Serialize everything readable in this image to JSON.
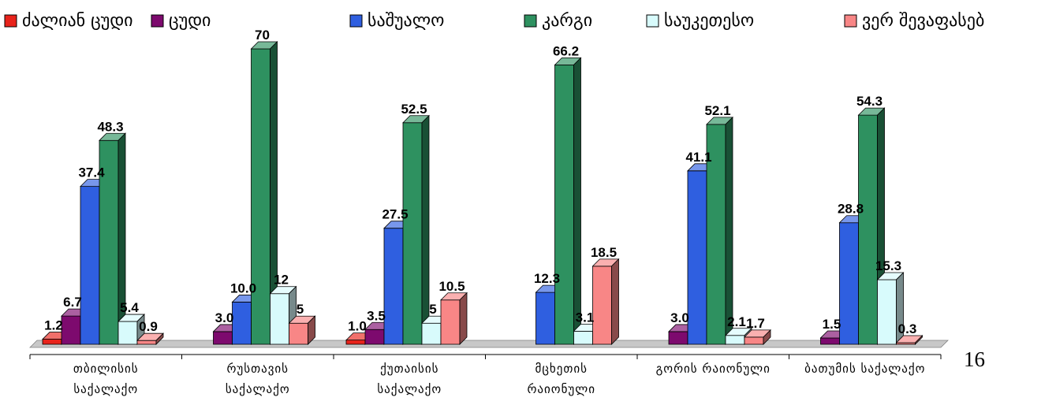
{
  "page_number": "16",
  "chart_data": {
    "type": "bar",
    "categories": [
      [
        "თბილისის",
        "საქალაქო"
      ],
      [
        "რუსთავის",
        "საქალაქო"
      ],
      [
        "ქუთაისის",
        "საქალაქო"
      ],
      [
        "მცხეთის",
        "რაიონული"
      ],
      [
        "გორის რაიონული"
      ],
      [
        "ბათუმის საქალაქო"
      ]
    ],
    "series": [
      {
        "name": "ძალიან ცუდი",
        "color": "#e8231b",
        "values": [
          1.2,
          null,
          1.0,
          null,
          null,
          null
        ],
        "labels": [
          "1.2",
          "",
          "1.0",
          "",
          "",
          ""
        ]
      },
      {
        "name": "ცუდი",
        "color": "#7d0a6e",
        "values": [
          6.7,
          3.0,
          3.5,
          null,
          3.0,
          1.5
        ],
        "labels": [
          "6.7",
          "3.0",
          "3.5",
          "",
          "3.0",
          "1.5"
        ]
      },
      {
        "name": "საშუალო",
        "color": "#2f5fe0",
        "values": [
          37.4,
          10.0,
          27.5,
          12.3,
          41.1,
          28.8
        ],
        "labels": [
          "37.4",
          "10.0",
          "27.5",
          "12.3",
          "41.1",
          "28.8"
        ]
      },
      {
        "name": "კარგი",
        "color": "#2e9160",
        "values": [
          48.3,
          70,
          52.5,
          66.2,
          52.1,
          54.3
        ],
        "labels": [
          "48.3",
          "70",
          "52.5",
          "66.2",
          "52.1",
          "54.3"
        ]
      },
      {
        "name": "საუკეთესო",
        "color": "#d8fbfc",
        "values": [
          5.4,
          12,
          5,
          3.1,
          2.1,
          15.3
        ],
        "labels": [
          "5.4",
          "12",
          "5",
          "3.1",
          "2.1",
          "15.3"
        ]
      },
      {
        "name": "ვერ შევაფასებ",
        "color": "#f88686",
        "values": [
          0.9,
          5,
          10.5,
          18.5,
          1.7,
          0.3
        ],
        "labels": [
          "0.9",
          "5",
          "10.5",
          "18.5",
          "1.7",
          "0.3"
        ]
      }
    ],
    "ylim": [
      0,
      70
    ],
    "grid": false,
    "legend": "top"
  }
}
